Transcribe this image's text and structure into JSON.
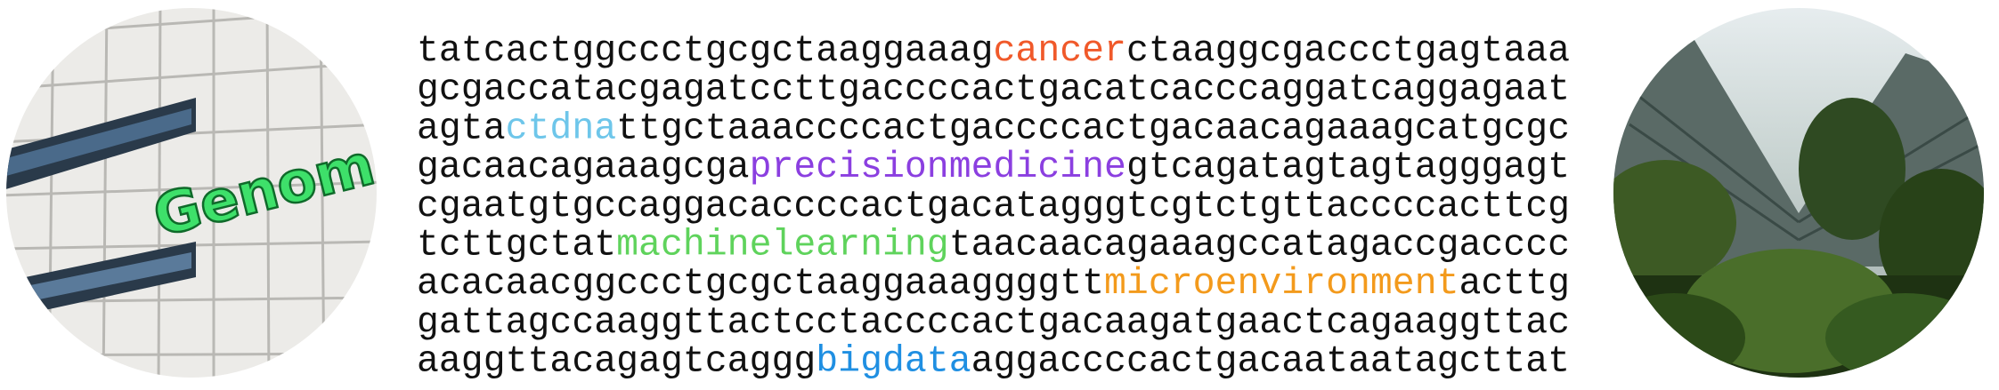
{
  "left_image": {
    "sign_text": "Genome"
  },
  "sequence": {
    "lines": [
      [
        {
          "text": "tatcactggccctgcgctaaggaaag"
        },
        {
          "text": "cancer",
          "color": "#f0592a"
        },
        {
          "text": "ctaaggcgaccctgagtaaa"
        }
      ],
      [
        {
          "text": "gcgaccatacgagatccttgaccccactgacatcacccaggatcaggagaat"
        }
      ],
      [
        {
          "text": "agta"
        },
        {
          "text": "ctdna",
          "color": "#6ec6ea"
        },
        {
          "text": "ttgctaaaccccactgaccccactgacaacagaaagcatgcgc"
        }
      ],
      [
        {
          "text": "gacaacagaaagcga"
        },
        {
          "text": "precisionmedicine",
          "color": "#8b3fe0"
        },
        {
          "text": "gtcagatagtagtagggagt"
        }
      ],
      [
        {
          "text": "cgaatgtgccaggacaccccactgacatagggtcgtctgttaccccacttcg"
        }
      ],
      [
        {
          "text": "tcttgctat"
        },
        {
          "text": "machinelearning",
          "color": "#5fd35c"
        },
        {
          "text": "taacaacagaaagccatagaccgacccc"
        }
      ],
      [
        {
          "text": "acacaacggccctgcgctaaggaaaggggtt"
        },
        {
          "text": "microenvironment",
          "color": "#f39a1c"
        },
        {
          "text": "acttg"
        }
      ],
      [
        {
          "text": "gattagccaaggttactcctaccccactgacaagatgaactcagaaggttac"
        }
      ],
      [
        {
          "text": "aaggttacagagtcaggg"
        },
        {
          "text": "bigdata",
          "color": "#1f8fe2"
        },
        {
          "text": "aggaccccactgacaataatagcttat"
        }
      ]
    ]
  }
}
